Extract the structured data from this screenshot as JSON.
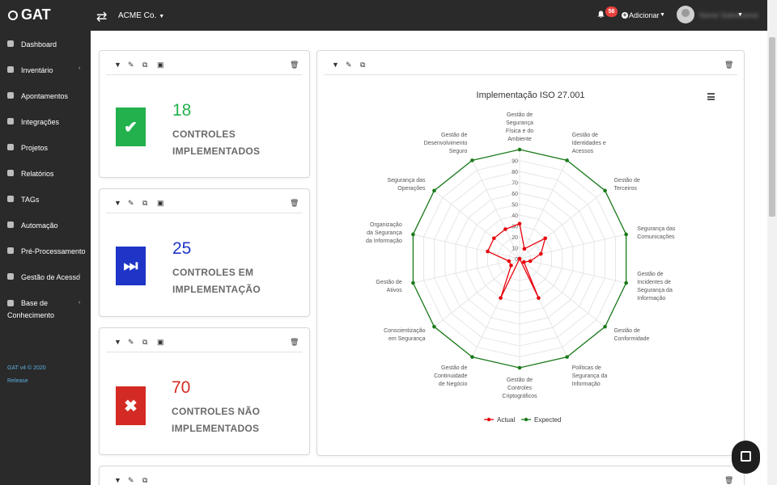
{
  "app": {
    "logo": "GAT",
    "company": "ACME Co.",
    "notifications": "56",
    "add_label": "Adicionar",
    "user_name": "Nome Sobrenome"
  },
  "sidebar": {
    "items": [
      {
        "label": "Dashboard",
        "icon": "dashboard-icon"
      },
      {
        "label": "Inventário",
        "icon": "inventory-icon",
        "has_sub": true
      },
      {
        "label": "Apontamentos",
        "icon": "notes-icon"
      },
      {
        "label": "Integrações",
        "icon": "plug-icon"
      },
      {
        "label": "Projetos",
        "icon": "list-icon"
      },
      {
        "label": "Relatórios",
        "icon": "report-icon"
      },
      {
        "label": "TAGs",
        "icon": "tag-icon"
      },
      {
        "label": "Automação",
        "icon": "bolt-icon"
      },
      {
        "label": "Pré-Processamento",
        "icon": "gear-icon"
      },
      {
        "label": "Gestão de Acesso",
        "icon": "users-icon",
        "has_sub": true
      },
      {
        "label": "Base de Conhecimento",
        "icon": "book-icon",
        "has_sub": true
      }
    ],
    "version": "GAT v4 © 2020",
    "release": "Release"
  },
  "kpis": [
    {
      "value": "18",
      "label_line1": "CONTROLES",
      "label_line2": "IMPLEMENTADOS",
      "color": "#22b14c",
      "symbol": "✔",
      "icon": "check-icon"
    },
    {
      "value": "25",
      "label_line1": "CONTROLES EM",
      "label_line2": "IMPLEMENTAÇÃO",
      "color": "#1f35c7",
      "symbol": "⏭",
      "icon": "fast-forward-icon"
    },
    {
      "value": "70",
      "label_line1": "CONTROLES NÃO",
      "label_line2": "IMPLEMENTADOS",
      "color": "#d42a24",
      "symbol": "✖",
      "icon": "cross-icon"
    }
  ],
  "chart_data": {
    "type": "radar",
    "title": "Implementação ISO 27.001",
    "categories": [
      "Gestão de Segurança Física e do Ambiente",
      "Gestão de Identidades e Acessos",
      "Gestão de Terceiros",
      "Segurança das Comunicações",
      "Gestão de Incidentes de Segurança da Informação",
      "Gestão de Conformidade",
      "Políticas de Segurança da Informação",
      "Gestão de Controles Criptográficos",
      "Gestão de Continuidade de Negócio",
      "Conscientização em Segurança",
      "Gestão de Ativos",
      "Organização da Segurança da Informação",
      "Segurança das Operações",
      "Gestão de Desenvolvimento Seguro"
    ],
    "radial_ticks": [
      0,
      10,
      20,
      30,
      40,
      50,
      60,
      70,
      80,
      90
    ],
    "rlim": [
      0,
      100
    ],
    "series": [
      {
        "name": "Actual",
        "color": "#e8000b",
        "values": [
          32,
          10,
          30,
          20,
          10,
          5,
          40,
          0,
          40,
          10,
          10,
          30,
          30,
          30
        ]
      },
      {
        "name": "Expected",
        "color": "#1a7a1a",
        "values": [
          100,
          100,
          100,
          100,
          100,
          100,
          100,
          100,
          100,
          100,
          100,
          100,
          100,
          100
        ]
      }
    ],
    "legend": "bottom"
  }
}
